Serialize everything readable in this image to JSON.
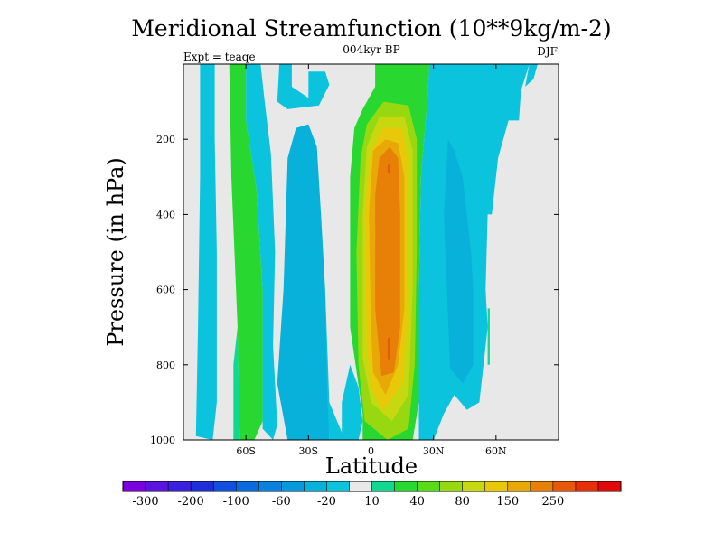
{
  "chart_data": {
    "type": "filled-contour",
    "title": "Meridional Streamfunction (10**9kg/m-2)",
    "subtitle": "004kyr BP",
    "left_annotation": "Expt = teaqe",
    "right_annotation": "DJF",
    "xlabel": "Latitude",
    "ylabel": "Pressure (in hPa)",
    "xlim": [
      -90,
      90
    ],
    "ylim": [
      1000,
      0
    ],
    "x_ticks": [
      {
        "value": -60,
        "label": "60S"
      },
      {
        "value": -30,
        "label": "30S"
      },
      {
        "value": 0,
        "label": "0"
      },
      {
        "value": 30,
        "label": "30N"
      },
      {
        "value": 60,
        "label": "60N"
      }
    ],
    "y_ticks": [
      {
        "value": 200,
        "label": "200"
      },
      {
        "value": 400,
        "label": "400"
      },
      {
        "value": 600,
        "label": "600"
      },
      {
        "value": 800,
        "label": "800"
      },
      {
        "value": 1000,
        "label": "1000"
      }
    ],
    "background_color": "#e8e8e8",
    "colorbar": {
      "levels": [
        -400,
        -300,
        -250,
        -200,
        -150,
        -100,
        -80,
        -60,
        -40,
        -20,
        -10,
        10,
        20,
        40,
        60,
        80,
        100,
        150,
        200,
        250,
        300,
        400
      ],
      "colors": [
        "#7a00dc",
        "#5a14e0",
        "#3a1fdc",
        "#1f2fd8",
        "#1050e0",
        "#0a6ae0",
        "#0882de",
        "#0899dc",
        "#08b1da",
        "#0bc3dc",
        "#e8e8e8",
        "#10d890",
        "#28d830",
        "#58dc18",
        "#98d810",
        "#c8d810",
        "#e8c808",
        "#e8a808",
        "#e88008",
        "#e85808",
        "#e83008",
        "#e00808"
      ],
      "labels": [
        {
          "value": -300,
          "label": "-300"
        },
        {
          "value": -200,
          "label": "-200"
        },
        {
          "value": -100,
          "label": "-100"
        },
        {
          "value": -60,
          "label": "-60"
        },
        {
          "value": -20,
          "label": "-20"
        },
        {
          "value": 10,
          "label": "10"
        },
        {
          "value": 40,
          "label": "40"
        },
        {
          "value": 80,
          "label": "80"
        },
        {
          "value": 150,
          "label": "150"
        },
        {
          "value": 250,
          "label": "250"
        }
      ]
    },
    "contour_regions": [
      {
        "name": "sh-polar-cell",
        "bin": 9,
        "points": [
          [
            -82,
            0
          ],
          [
            -75,
            0
          ],
          [
            -75,
            200
          ],
          [
            -74,
            500
          ],
          [
            -74,
            900
          ],
          [
            -76,
            1000
          ],
          [
            -84,
            990
          ],
          [
            -83,
            700
          ],
          [
            -82,
            300
          ]
        ]
      },
      {
        "name": "sh-ferrel-band",
        "bin": 12,
        "points": [
          [
            -68,
            0
          ],
          [
            -60,
            0
          ],
          [
            -60,
            150
          ],
          [
            -55,
            330
          ],
          [
            -52,
            600
          ],
          [
            -52,
            950
          ],
          [
            -56,
            1000
          ],
          [
            -63,
            1000
          ],
          [
            -64,
            700
          ],
          [
            -67,
            300
          ]
        ]
      },
      {
        "name": "sh-green-tail",
        "bin": 11,
        "points": [
          [
            -64,
            700
          ],
          [
            -63,
            1000
          ],
          [
            -66,
            1000
          ],
          [
            -66,
            800
          ]
        ]
      },
      {
        "name": "sh-cyan-fringe",
        "bin": 9,
        "points": [
          [
            -60,
            0
          ],
          [
            -53,
            0
          ],
          [
            -51,
            100
          ],
          [
            -48,
            240
          ],
          [
            -46,
            500
          ],
          [
            -47,
            750
          ],
          [
            -45,
            960
          ],
          [
            -47,
            1000
          ],
          [
            -52,
            970
          ],
          [
            -52,
            600
          ],
          [
            -55,
            330
          ],
          [
            -60,
            150
          ]
        ]
      },
      {
        "name": "sh-top-cyan",
        "bin": 9,
        "points": [
          [
            -44,
            0
          ],
          [
            -38,
            0
          ],
          [
            -38,
            60
          ],
          [
            -30,
            90
          ],
          [
            -30,
            20
          ],
          [
            -22,
            20
          ],
          [
            -20,
            55
          ],
          [
            -25,
            110
          ],
          [
            -40,
            120
          ],
          [
            -45,
            100
          ]
        ]
      },
      {
        "name": "sh-hadley-blue",
        "bin": 8,
        "points": [
          [
            -45,
            850
          ],
          [
            -42,
            600
          ],
          [
            -40,
            250
          ],
          [
            -36,
            170
          ],
          [
            -30,
            160
          ],
          [
            -26,
            220
          ],
          [
            -24,
            400
          ],
          [
            -22,
            600
          ],
          [
            -20,
            1000
          ],
          [
            -40,
            1000
          ]
        ]
      },
      {
        "name": "sh-hadley-edge",
        "bin": 9,
        "points": [
          [
            -22,
            600
          ],
          [
            -20,
            900
          ],
          [
            -14,
            980
          ],
          [
            -10,
            1000
          ],
          [
            -20,
            1000
          ],
          [
            -21,
            880
          ]
        ]
      },
      {
        "name": "nh-cyan-lobe",
        "bin": 9,
        "points": [
          [
            -14,
            900
          ],
          [
            -10,
            800
          ],
          [
            -6,
            860
          ],
          [
            -4,
            950
          ],
          [
            -6,
            1000
          ],
          [
            -14,
            1000
          ]
        ]
      },
      {
        "name": "hadley-green",
        "bin": 12,
        "points": [
          [
            -4,
            930
          ],
          [
            -10,
            700
          ],
          [
            -10,
            300
          ],
          [
            -8,
            170
          ],
          [
            -4,
            120
          ],
          [
            2,
            60
          ],
          [
            2,
            0
          ],
          [
            28,
            0
          ],
          [
            27,
            100
          ],
          [
            24,
            300
          ],
          [
            23,
            600
          ],
          [
            23,
            900
          ],
          [
            20,
            1000
          ],
          [
            -4,
            1000
          ]
        ]
      },
      {
        "name": "hadley-yellowgreen",
        "bin": 14,
        "points": [
          [
            -6,
            800
          ],
          [
            -7,
            500
          ],
          [
            -5,
            250
          ],
          [
            -2,
            160
          ],
          [
            6,
            100
          ],
          [
            18,
            110
          ],
          [
            22,
            200
          ],
          [
            22,
            500
          ],
          [
            21,
            800
          ],
          [
            18,
            970
          ],
          [
            8,
            1000
          ],
          [
            -3,
            950
          ]
        ]
      },
      {
        "name": "hadley-yellow",
        "bin": 15,
        "points": [
          [
            -4,
            780
          ],
          [
            -4,
            400
          ],
          [
            -2,
            220
          ],
          [
            4,
            140
          ],
          [
            16,
            140
          ],
          [
            20,
            230
          ],
          [
            20,
            600
          ],
          [
            18,
            880
          ],
          [
            10,
            950
          ],
          [
            0,
            900
          ]
        ]
      },
      {
        "name": "hadley-lightorange",
        "bin": 16,
        "points": [
          [
            -2,
            750
          ],
          [
            -3,
            400
          ],
          [
            0,
            230
          ],
          [
            6,
            170
          ],
          [
            15,
            170
          ],
          [
            18,
            270
          ],
          [
            18,
            650
          ],
          [
            15,
            850
          ],
          [
            6,
            920
          ],
          [
            0,
            860
          ]
        ]
      },
      {
        "name": "hadley-orange",
        "bin": 17,
        "points": [
          [
            0,
            700
          ],
          [
            -1,
            400
          ],
          [
            1,
            230
          ],
          [
            7,
            200
          ],
          [
            13,
            210
          ],
          [
            16,
            300
          ],
          [
            16,
            650
          ],
          [
            13,
            800
          ],
          [
            7,
            880
          ],
          [
            1,
            820
          ]
        ]
      },
      {
        "name": "hadley-dark-orange",
        "bin": 18,
        "points": [
          [
            2,
            650
          ],
          [
            2,
            350
          ],
          [
            4,
            250
          ],
          [
            9,
            220
          ],
          [
            13,
            250
          ],
          [
            14,
            400
          ],
          [
            14,
            700
          ],
          [
            11,
            820
          ],
          [
            5,
            830
          ]
        ]
      },
      {
        "name": "hadley-red-core-a",
        "bin": 19,
        "points": [
          [
            8,
            270
          ],
          [
            9,
            265
          ],
          [
            9,
            290
          ],
          [
            8,
            290
          ]
        ]
      },
      {
        "name": "hadley-red-core-b",
        "bin": 19,
        "points": [
          [
            8,
            730
          ],
          [
            9,
            725
          ],
          [
            9,
            785
          ],
          [
            8,
            785
          ]
        ]
      },
      {
        "name": "nh-ferrel-cyan",
        "bin": 9,
        "points": [
          [
            28,
            0
          ],
          [
            42,
            0
          ],
          [
            46,
            0
          ],
          [
            56,
            0
          ],
          [
            76,
            0
          ],
          [
            72,
            70
          ],
          [
            71,
            150
          ],
          [
            66,
            150
          ],
          [
            61,
            250
          ],
          [
            58,
            400
          ],
          [
            56,
            400
          ],
          [
            55,
            600
          ],
          [
            56,
            700
          ],
          [
            52,
            900
          ],
          [
            46,
            920
          ],
          [
            40,
            880
          ],
          [
            35,
            930
          ],
          [
            30,
            1000
          ],
          [
            23,
            1000
          ],
          [
            23,
            600
          ],
          [
            24,
            300
          ],
          [
            27,
            100
          ]
        ]
      },
      {
        "name": "nh-ferrel-blue",
        "bin": 8,
        "points": [
          [
            35,
            400
          ],
          [
            37,
            200
          ],
          [
            40,
            230
          ],
          [
            44,
            300
          ],
          [
            48,
            500
          ],
          [
            49,
            600
          ],
          [
            49,
            800
          ],
          [
            44,
            850
          ],
          [
            38,
            810
          ]
        ]
      },
      {
        "name": "nh-polar-green",
        "bin": 11,
        "points": [
          [
            56,
            650
          ],
          [
            57,
            650
          ],
          [
            57,
            800
          ],
          [
            56,
            800
          ]
        ]
      },
      {
        "name": "nh-top-strip",
        "bin": 9,
        "points": [
          [
            76,
            0
          ],
          [
            80,
            0
          ],
          [
            78,
            40
          ],
          [
            74,
            60
          ]
        ]
      }
    ]
  }
}
